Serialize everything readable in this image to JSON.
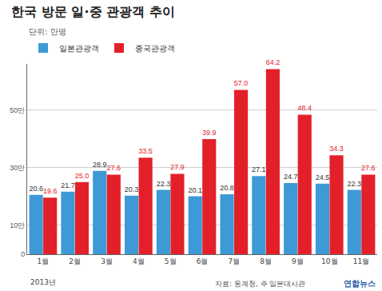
{
  "chart_data": {
    "type": "bar",
    "title": "한국 방문 일·중 관광객 추이",
    "subtitle": "단위: 만명",
    "categories": [
      "1월",
      "2월",
      "3월",
      "4월",
      "5월",
      "6월",
      "7월",
      "8월",
      "9월",
      "10월",
      "11월"
    ],
    "series": [
      {
        "name": "일본관광객",
        "color": "#3d9ad6",
        "values": [
          20.6,
          21.7,
          28.9,
          20.3,
          22.3,
          20.1,
          20.8,
          27.1,
          24.7,
          24.5,
          22.3
        ],
        "value_labels": [
          "20.6",
          "21.7",
          "28.9",
          "20.3",
          "22.3",
          "20.1",
          "20.8",
          "27.1",
          "24.7",
          "24.5",
          "22.3"
        ]
      },
      {
        "name": "중국관광객",
        "color": "#e3202a",
        "values": [
          19.6,
          25.0,
          27.6,
          33.5,
          27.9,
          39.9,
          57.0,
          64.2,
          48.4,
          34.3,
          27.6
        ],
        "value_labels": [
          "19.6",
          "25.0",
          "27.6",
          "33.5",
          "27.9",
          "39.9",
          "57.0",
          "64.2",
          "48.4",
          "34.3",
          "27.6"
        ]
      }
    ],
    "ylim": [
      0,
      66
    ],
    "yticks": [
      0,
      {
        "value": 10,
        "label": "10만"
      },
      {
        "value": 30,
        "label": "30만"
      },
      {
        "value": 50,
        "label": "50만"
      }
    ],
    "grid": true,
    "legend": "top-left",
    "data_labels": true,
    "annotations": [
      {
        "category": "1월",
        "text": "2013년"
      }
    ],
    "source": "자료: 통계청, 주 일본대사관",
    "logo": "연합뉴스"
  }
}
